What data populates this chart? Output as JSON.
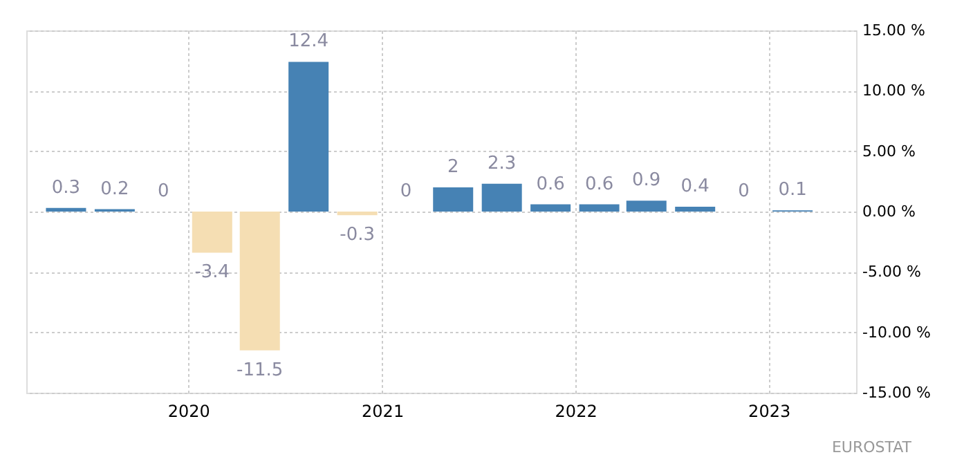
{
  "chart_data": {
    "type": "bar",
    "x": [
      "2019-05-15",
      "2019-08-15",
      "2019-11-15",
      "2020-02-15",
      "2020-05-15",
      "2020-08-15",
      "2020-11-15",
      "2021-02-15",
      "2021-05-15",
      "2021-08-15",
      "2021-11-15",
      "2022-02-15",
      "2022-05-15",
      "2022-08-15",
      "2022-11-15",
      "2023-02-15"
    ],
    "values": [
      0.3,
      0.2,
      0,
      -3.4,
      -11.5,
      12.4,
      -0.3,
      0,
      2,
      2.3,
      0.6,
      0.6,
      0.9,
      0.4,
      0,
      0.1
    ],
    "colors": [
      "#4682b4",
      "#4682b4",
      "#4682b4",
      "#f5deb3",
      "#f5deb3",
      "#4682b4",
      "#f5deb3",
      "#4682b4",
      "#4682b4",
      "#4682b4",
      "#4682b4",
      "#4682b4",
      "#4682b4",
      "#4682b4",
      "#4682b4",
      "#4682b4"
    ],
    "data_labels": true,
    "xlim": [
      "2019-03-01",
      "2023-06-15"
    ],
    "xticks": [
      "2020",
      "2021",
      "2022",
      "2023"
    ],
    "ylim": [
      -15,
      15
    ],
    "yticks": [
      {
        "value": -15,
        "label": "-15.00 %"
      },
      {
        "value": -10,
        "label": "-10.00 %"
      },
      {
        "value": -5,
        "label": "-5.00 %"
      },
      {
        "value": 0,
        "label": "0.00 %"
      },
      {
        "value": 5,
        "label": "5.00 %"
      },
      {
        "value": 10,
        "label": "10.00 %"
      },
      {
        "value": 15,
        "label": "15.00 %"
      }
    ],
    "grid": true,
    "annotations": [
      "EUROSTAT"
    ]
  }
}
